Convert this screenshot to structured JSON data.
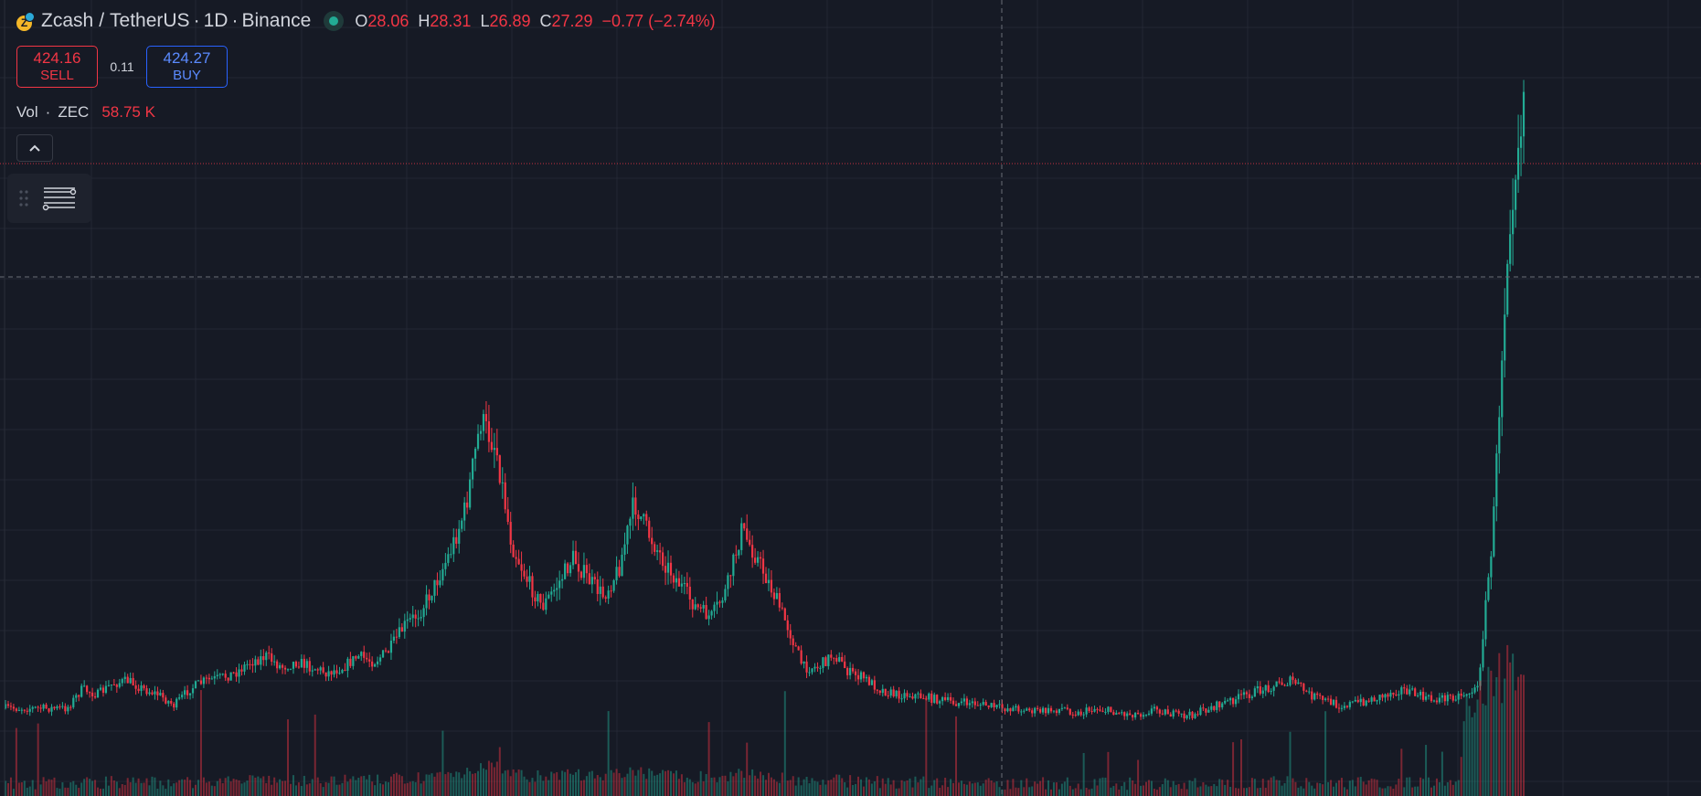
{
  "symbol": {
    "name": "Zcash",
    "divider": "/",
    "quote": "TetherUS",
    "dot1": "·",
    "interval": "1D",
    "dot2": "·",
    "exchange": "Binance",
    "logo_letter": "Z",
    "logo_color": "#f4b728"
  },
  "ohlc": {
    "open_label": "O",
    "open": "28.06",
    "high_label": "H",
    "high": "28.31",
    "low_label": "L",
    "low": "26.89",
    "close_label": "C",
    "close": "27.29",
    "change": "−0.77 (−2.74%)"
  },
  "trade": {
    "sell_price": "424.16",
    "sell_label": "SELL",
    "spread": "0.11",
    "buy_price": "424.27",
    "buy_label": "BUY"
  },
  "volume_legend": {
    "label": "Vol",
    "dot": "·",
    "unit": "ZEC",
    "value": "58.75 K"
  },
  "icons": {
    "collapse": "chevron-up-icon",
    "drag": "drag-grip-icon",
    "settings": "sliders-icon",
    "status": "market-open-status-icon"
  },
  "colors": {
    "background": "#161a25",
    "up": "#22ab94",
    "down": "#f23645",
    "grid": "#232733",
    "crosshair": "#6a6d78",
    "price_line": "#f23645"
  },
  "chart_data": {
    "type": "candlestick",
    "interval": "1D",
    "price_path_ratio": [
      0.05,
      0.05,
      0.05,
      0.05,
      0.05,
      0.12,
      0.1,
      0.14,
      0.15,
      0.12,
      0.1,
      0.06,
      0.12,
      0.15,
      0.16,
      0.18,
      0.22,
      0.24,
      0.2,
      0.22,
      0.2,
      0.18,
      0.2,
      0.24,
      0.22,
      0.26,
      0.35,
      0.4,
      0.5,
      0.62,
      0.78,
      1.1,
      1.0,
      0.65,
      0.52,
      0.42,
      0.5,
      0.6,
      0.52,
      0.46,
      0.56,
      0.8,
      0.68,
      0.58,
      0.5,
      0.42,
      0.38,
      0.48,
      0.7,
      0.6,
      0.48,
      0.35,
      0.2,
      0.2,
      0.25,
      0.18,
      0.16,
      0.12,
      0.1,
      0.1,
      0.09,
      0.08,
      0.07,
      0.07,
      0.06,
      0.05,
      0.05,
      0.04,
      0.04,
      0.05,
      0.03,
      0.05,
      0.04,
      0.03,
      0.03,
      0.05,
      0.03,
      0.02,
      0.04,
      0.06,
      0.08,
      0.1,
      0.12,
      0.14,
      0.15,
      0.1,
      0.08,
      0.06,
      0.07,
      0.08,
      0.1,
      0.12,
      0.1,
      0.08,
      0.09,
      0.1,
      0.12,
      0.7,
      1.8,
      2.3
    ],
    "price_path_note_unused": "",
    "volume_spikes": [
      0.3,
      0.25,
      0.2,
      0.45,
      0.3,
      0.25,
      0.6,
      0.35,
      0.4,
      0.3,
      0.55,
      0.8
    ],
    "crosshair_visible": true,
    "grid": true,
    "last_price_line": true
  }
}
